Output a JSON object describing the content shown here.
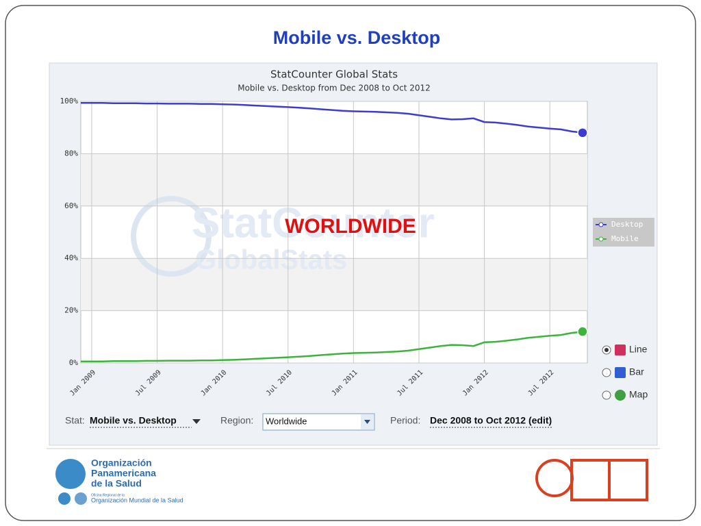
{
  "slide": {
    "title": "Mobile vs. Desktop"
  },
  "chart_data": {
    "type": "line",
    "title": "StatCounter Global Stats",
    "subtitle": "Mobile vs. Desktop from Dec 2008 to Oct 2012",
    "annotation": "WORLDWIDE",
    "watermark": [
      "StatCounter",
      "GlobalStats"
    ],
    "x": [
      "Dec 2008",
      "Jan 2009",
      "Feb 2009",
      "Mar 2009",
      "Apr 2009",
      "May 2009",
      "Jun 2009",
      "Jul 2009",
      "Aug 2009",
      "Sep 2009",
      "Oct 2009",
      "Nov 2009",
      "Dec 2009",
      "Jan 2010",
      "Feb 2010",
      "Mar 2010",
      "Apr 2010",
      "May 2010",
      "Jun 2010",
      "Jul 2010",
      "Aug 2010",
      "Sep 2010",
      "Oct 2010",
      "Nov 2010",
      "Dec 2010",
      "Jan 2011",
      "Feb 2011",
      "Mar 2011",
      "Apr 2011",
      "May 2011",
      "Jun 2011",
      "Jul 2011",
      "Aug 2011",
      "Sep 2011",
      "Oct 2011",
      "Nov 2011",
      "Dec 2011",
      "Jan 2012",
      "Feb 2012",
      "Mar 2012",
      "Apr 2012",
      "May 2012",
      "Jun 2012",
      "Jul 2012",
      "Aug 2012",
      "Sep 2012",
      "Oct 2012"
    ],
    "series": [
      {
        "name": "Desktop",
        "color": "#3c3cd2",
        "values": [
          99.4,
          99.4,
          99.4,
          99.3,
          99.3,
          99.3,
          99.2,
          99.2,
          99.1,
          99.1,
          99.1,
          99.0,
          99.0,
          98.9,
          98.8,
          98.6,
          98.4,
          98.2,
          98.0,
          97.8,
          97.6,
          97.3,
          97.0,
          96.7,
          96.4,
          96.2,
          96.1,
          96.0,
          95.8,
          95.6,
          95.3,
          94.7,
          94.1,
          93.5,
          93.1,
          93.2,
          93.5,
          92.1,
          91.9,
          91.5,
          91.0,
          90.4,
          90.0,
          89.6,
          89.3,
          88.5,
          88.0
        ]
      },
      {
        "name": "Mobile",
        "color": "#3cb43c",
        "values": [
          0.6,
          0.6,
          0.6,
          0.7,
          0.7,
          0.7,
          0.8,
          0.8,
          0.9,
          0.9,
          0.9,
          1.0,
          1.0,
          1.1,
          1.2,
          1.4,
          1.6,
          1.8,
          2.0,
          2.2,
          2.4,
          2.7,
          3.0,
          3.3,
          3.6,
          3.8,
          3.9,
          4.0,
          4.2,
          4.4,
          4.7,
          5.3,
          5.9,
          6.5,
          6.9,
          6.8,
          6.5,
          7.9,
          8.1,
          8.5,
          9.0,
          9.6,
          10.0,
          10.4,
          10.7,
          11.5,
          12.0
        ]
      }
    ],
    "xticks": [
      "Jan 2009",
      "Jul 2009",
      "Jan 2010",
      "Jul 2010",
      "Jan 2011",
      "Jul 2011",
      "Jan 2012",
      "Jul 2012"
    ],
    "ylim": [
      0,
      100
    ],
    "yticks": [
      {
        "value": 0,
        "label": "0%"
      },
      {
        "value": 20,
        "label": "20%"
      },
      {
        "value": 40,
        "label": "40%"
      },
      {
        "value": 60,
        "label": "60%"
      },
      {
        "value": 80,
        "label": "80%"
      },
      {
        "value": 100,
        "label": "100%"
      }
    ],
    "grid": true,
    "legend": "right"
  },
  "controls": {
    "chart_types": [
      "Line",
      "Bar",
      "Map"
    ],
    "stat_label": "Stat:",
    "stat_value": "Mobile vs. Desktop",
    "region_label": "Region:",
    "region_value": "Worldwide",
    "period_label": "Period:",
    "period_value": "Dec 2008 to Oct 2012 (edit)"
  },
  "footer": {
    "org_lines": [
      "Organización",
      "Panamericana",
      "de la Salud"
    ],
    "small_line": "Oficina Regional de la",
    "who_line": "Organización Mundial de la Salud"
  }
}
